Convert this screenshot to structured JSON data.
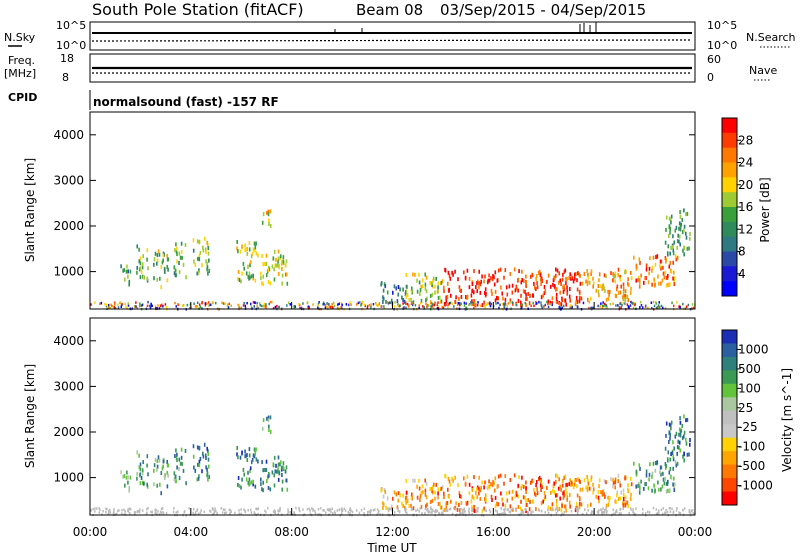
{
  "header": {
    "station": "South Pole Station (fitACF)",
    "beam": "Beam 08",
    "dates": "03/Sep/2015 - 04/Sep/2015"
  },
  "top_panels": {
    "nsky_label": "N.Sky",
    "nsky_ticks": [
      "10^5",
      "10^0"
    ],
    "nsearch_label": "N.Search",
    "nsearch_ticks": [
      "10^5",
      "10^0"
    ],
    "freq_label_1": "Freq.",
    "freq_label_2": "[MHz]",
    "freq_ticks": [
      "18",
      "8"
    ],
    "nave_label": "Nave",
    "nave_ticks": [
      "60",
      "0"
    ],
    "cpid_label": "CPID",
    "cpid_text": "normalsound (fast) -157 RF"
  },
  "chart_data": [
    {
      "type": "heatmap",
      "name": "Power",
      "ylabel": "Slant Range [km]",
      "xlabel": "",
      "ylim": [
        180,
        4500
      ],
      "xlim_hours": [
        0,
        24
      ],
      "yticks": [
        "1000",
        "2000",
        "3000",
        "4000"
      ],
      "colorbar_label": "Power [dB]",
      "colorbar_ticks": [
        "28",
        "24",
        "20",
        "16",
        "12",
        "8",
        "4"
      ],
      "colorbar_colors": [
        "#ff0000",
        "#ff3c00",
        "#ff7800",
        "#ffa200",
        "#ffd200",
        "#9ecb34",
        "#3aa03c",
        "#2f8a5c",
        "#2f7a82",
        "#2b4aa8",
        "#1a1ad6",
        "#0000ff"
      ],
      "scatter_regions": [
        {
          "t0": 1.2,
          "t1": 1.6,
          "r0": 700,
          "r1": 1200,
          "level": 0.4
        },
        {
          "t0": 1.8,
          "t1": 2.3,
          "r0": 800,
          "r1": 1600,
          "level": 0.45
        },
        {
          "t0": 2.5,
          "t1": 3.1,
          "r0": 700,
          "r1": 1500,
          "level": 0.5
        },
        {
          "t0": 3.3,
          "t1": 3.8,
          "r0": 900,
          "r1": 1700,
          "level": 0.45
        },
        {
          "t0": 4.0,
          "t1": 4.7,
          "r0": 1000,
          "r1": 1800,
          "level": 0.5
        },
        {
          "t0": 5.8,
          "t1": 6.6,
          "r0": 800,
          "r1": 1700,
          "level": 0.55
        },
        {
          "t0": 6.6,
          "t1": 7.8,
          "r0": 750,
          "r1": 1500,
          "level": 0.6
        },
        {
          "t0": 6.8,
          "t1": 7.2,
          "r0": 2000,
          "r1": 2400,
          "level": 0.6
        },
        {
          "t0": 11.5,
          "t1": 12.5,
          "r0": 350,
          "r1": 800,
          "level": 0.3
        },
        {
          "t0": 12.5,
          "t1": 14.0,
          "r0": 350,
          "r1": 1000,
          "level": 0.55
        },
        {
          "t0": 14.0,
          "t1": 19.5,
          "r0": 300,
          "r1": 1100,
          "level": 0.92
        },
        {
          "t0": 19.5,
          "t1": 21.5,
          "r0": 400,
          "r1": 1100,
          "level": 0.7
        },
        {
          "t0": 21.5,
          "t1": 23.3,
          "r0": 700,
          "r1": 1400,
          "level": 0.8
        },
        {
          "t0": 22.8,
          "t1": 23.8,
          "r0": 1400,
          "r1": 2400,
          "level": 0.4
        }
      ]
    },
    {
      "type": "heatmap",
      "name": "Velocity",
      "ylabel": "Slant Range [km]",
      "xlabel": "Time UT",
      "ylim": [
        180,
        4500
      ],
      "xlim_hours": [
        0,
        24
      ],
      "xticks": [
        "00:00",
        "04:00",
        "08:00",
        "12:00",
        "16:00",
        "20:00",
        "00:00"
      ],
      "yticks": [
        "1000",
        "2000",
        "3000",
        "4000"
      ],
      "colorbar_label": "Velocity [m s^-1]",
      "colorbar_ticks": [
        "1000",
        "500",
        "100",
        "25",
        "-25",
        "-100",
        "-500",
        "-1000"
      ],
      "colorbar_colors": [
        "#1c2fb4",
        "#2a60a0",
        "#2f7f7a",
        "#3a9a54",
        "#62c43a",
        "#aac8a0",
        "#c0c0c0",
        "#c8c8c8",
        "#ffd200",
        "#ffa500",
        "#ff7800",
        "#ff4600",
        "#ff0000"
      ],
      "scatter_regions": [
        {
          "t0": 1.2,
          "t1": 1.6,
          "r0": 700,
          "r1": 1200,
          "level": 0.6
        },
        {
          "t0": 1.8,
          "t1": 2.3,
          "r0": 800,
          "r1": 1600,
          "level": 0.7
        },
        {
          "t0": 2.5,
          "t1": 3.1,
          "r0": 700,
          "r1": 1500,
          "level": 0.72
        },
        {
          "t0": 3.3,
          "t1": 3.8,
          "r0": 900,
          "r1": 1700,
          "level": 0.75
        },
        {
          "t0": 4.0,
          "t1": 4.7,
          "r0": 1000,
          "r1": 1800,
          "level": 0.8
        },
        {
          "t0": 5.8,
          "t1": 6.6,
          "r0": 800,
          "r1": 1700,
          "level": 0.8
        },
        {
          "t0": 6.6,
          "t1": 7.8,
          "r0": 750,
          "r1": 1500,
          "level": 0.8
        },
        {
          "t0": 6.8,
          "t1": 7.2,
          "r0": 2000,
          "r1": 2400,
          "level": 0.75
        },
        {
          "t0": 11.5,
          "t1": 12.5,
          "r0": 350,
          "r1": 800,
          "level": 0.3
        },
        {
          "t0": 12.5,
          "t1": 14.0,
          "r0": 350,
          "r1": 1000,
          "level": 0.25
        },
        {
          "t0": 14.0,
          "t1": 19.5,
          "r0": 300,
          "r1": 1100,
          "level": 0.2
        },
        {
          "t0": 19.5,
          "t1": 21.5,
          "r0": 400,
          "r1": 1100,
          "level": 0.25
        },
        {
          "t0": 21.5,
          "t1": 23.3,
          "r0": 700,
          "r1": 1400,
          "level": 0.75
        },
        {
          "t0": 22.8,
          "t1": 23.8,
          "r0": 1400,
          "r1": 2400,
          "level": 0.8
        }
      ]
    }
  ]
}
